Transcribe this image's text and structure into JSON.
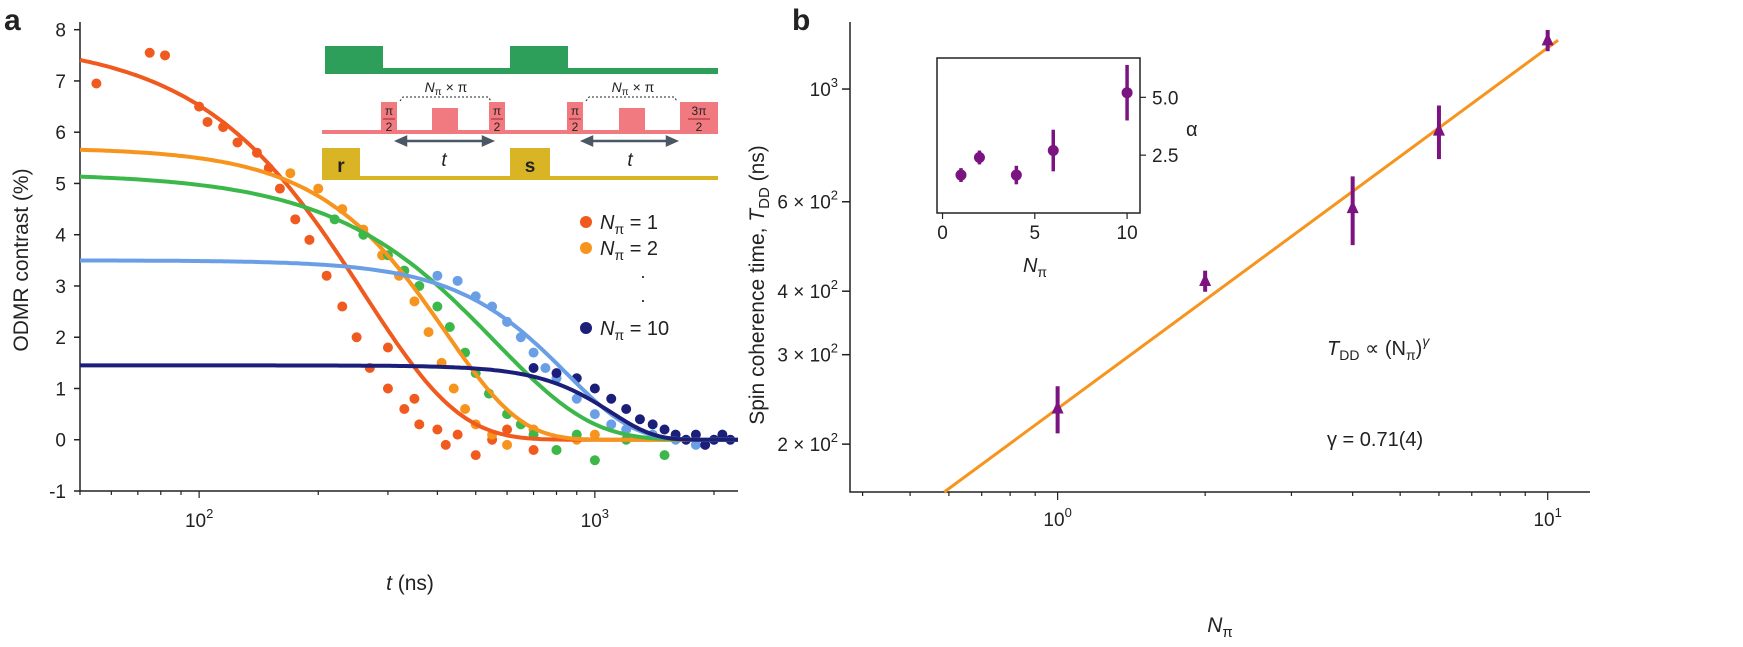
{
  "chart_data": [
    {
      "panel_label": "a",
      "type": "scatter",
      "xscale": "log",
      "xlabel_var": "t",
      "xlabel_unit": "(ns)",
      "ylabel": "ODMR contrast (%)",
      "xlim": [
        50,
        2300
      ],
      "ylim": [
        -1,
        8.15
      ],
      "yticks": [
        "8",
        "7",
        "6",
        "5",
        "4",
        "3",
        "2",
        "1",
        "0",
        "-1"
      ],
      "xticks": [
        {
          "v": 100,
          "base": "10",
          "exp": "2"
        },
        {
          "v": 1000,
          "base": "10",
          "exp": "3"
        }
      ],
      "legend": {
        "items": [
          {
            "label_var": "N",
            "label_sub": "π",
            "label_val": "= 1",
            "color": "#f05a1e"
          },
          {
            "label_var": "N",
            "label_sub": "π",
            "label_val": "= 2",
            "color": "#f7941d"
          },
          {
            "label_var": "N",
            "label_sub": "π",
            "label_val": "= 10",
            "color": "#1b1f7a"
          }
        ],
        "ellipsis": "·"
      },
      "series": [
        {
          "name": "N=1",
          "color": "#f05a1e",
          "fit": {
            "A": 7.8,
            "T": 260,
            "alpha": 1.8
          },
          "points": [
            [
              55,
              6.95
            ],
            [
              75,
              7.55
            ],
            [
              82,
              7.5
            ],
            [
              100,
              6.5
            ],
            [
              105,
              6.2
            ],
            [
              115,
              6.1
            ],
            [
              125,
              5.8
            ],
            [
              140,
              5.6
            ],
            [
              150,
              5.3
            ],
            [
              160,
              4.9
            ],
            [
              175,
              4.3
            ],
            [
              190,
              3.9
            ],
            [
              210,
              3.2
            ],
            [
              230,
              2.6
            ],
            [
              250,
              2.0
            ],
            [
              270,
              1.4
            ],
            [
              300,
              1.0
            ],
            [
              300,
              1.8
            ],
            [
              330,
              0.6
            ],
            [
              350,
              0.8
            ],
            [
              360,
              0.3
            ],
            [
              400,
              0.2
            ],
            [
              420,
              -0.1
            ],
            [
              450,
              0.1
            ],
            [
              500,
              -0.3
            ],
            [
              550,
              0
            ],
            [
              600,
              0.2
            ],
            [
              700,
              -0.2
            ]
          ]
        },
        {
          "name": "N=2",
          "color": "#f7941d",
          "fit": {
            "A": 5.7,
            "T": 420,
            "alpha": 2.3
          },
          "points": [
            [
              170,
              5.2
            ],
            [
              200,
              4.9
            ],
            [
              230,
              4.5
            ],
            [
              260,
              4.1
            ],
            [
              290,
              3.6
            ],
            [
              320,
              3.2
            ],
            [
              350,
              2.7
            ],
            [
              380,
              2.1
            ],
            [
              410,
              1.5
            ],
            [
              440,
              1.0
            ],
            [
              470,
              0.6
            ],
            [
              500,
              0.3
            ],
            [
              550,
              0.1
            ],
            [
              600,
              -0.1
            ],
            [
              700,
              0.2
            ],
            [
              800,
              -0.2
            ],
            [
              900,
              0
            ],
            [
              1000,
              0.1
            ]
          ]
        },
        {
          "name": "N=4",
          "color": "#3cb84a",
          "fit": {
            "A": 5.2,
            "T": 560,
            "alpha": 1.8
          },
          "points": [
            [
              220,
              4.3
            ],
            [
              260,
              4.0
            ],
            [
              300,
              3.6
            ],
            [
              330,
              3.3
            ],
            [
              360,
              3.0
            ],
            [
              400,
              2.6
            ],
            [
              430,
              2.2
            ],
            [
              470,
              1.7
            ],
            [
              500,
              1.3
            ],
            [
              540,
              0.9
            ],
            [
              600,
              0.5
            ],
            [
              650,
              0.3
            ],
            [
              700,
              0.1
            ],
            [
              800,
              -0.2
            ],
            [
              900,
              0.1
            ],
            [
              1000,
              -0.4
            ],
            [
              1200,
              0
            ],
            [
              1500,
              -0.3
            ]
          ]
        },
        {
          "name": "N=6",
          "color": "#6a9fe6",
          "fit": {
            "A": 3.5,
            "T": 850,
            "alpha": 2.6
          },
          "points": [
            [
              400,
              3.2
            ],
            [
              450,
              3.1
            ],
            [
              500,
              2.8
            ],
            [
              550,
              2.6
            ],
            [
              600,
              2.3
            ],
            [
              650,
              2.0
            ],
            [
              700,
              1.7
            ],
            [
              750,
              1.4
            ],
            [
              800,
              1.2
            ],
            [
              900,
              0.8
            ],
            [
              1000,
              0.5
            ],
            [
              1100,
              0.3
            ],
            [
              1200,
              0.2
            ],
            [
              1400,
              0.1
            ],
            [
              1600,
              0
            ],
            [
              1800,
              -0.1
            ],
            [
              2000,
              0
            ]
          ]
        },
        {
          "name": "N=10",
          "color": "#1b1f7a",
          "fit": {
            "A": 1.45,
            "T": 1100,
            "alpha": 4
          },
          "points": [
            [
              700,
              1.4
            ],
            [
              800,
              1.3
            ],
            [
              900,
              1.2
            ],
            [
              1000,
              1.0
            ],
            [
              1100,
              0.8
            ],
            [
              1200,
              0.6
            ],
            [
              1300,
              0.4
            ],
            [
              1400,
              0.3
            ],
            [
              1500,
              0.2
            ],
            [
              1600,
              0.1
            ],
            [
              1700,
              0
            ],
            [
              1800,
              0.1
            ],
            [
              1900,
              -0.1
            ],
            [
              2000,
              0
            ],
            [
              2100,
              0.1
            ],
            [
              2200,
              0
            ]
          ]
        }
      ],
      "pulse_diagram": {
        "colors": {
          "laser": "#2e9e5b",
          "mw": "#f07a80",
          "readout": "#d9b526",
          "arrow": "#4a5866"
        },
        "block_label": "N",
        "block_label_sub": "π",
        "block_label_rest": "× π",
        "half_pi_num": "π",
        "half_pi_den": "2",
        "three_half_pi_num": "3π",
        "delay_label": "t",
        "readout_labels": [
          "r",
          "s"
        ]
      }
    },
    {
      "panel_label": "b",
      "type": "scatter",
      "xscale": "log",
      "yscale": "log",
      "ylabel": "Spin coherence time, ",
      "ylabel_var": "T",
      "ylabel_sub": "DD",
      "ylabel_unit": " (ns)",
      "xlabel_var": "N",
      "xlabel_sub": "π",
      "xlim": [
        0.377,
        12.2
      ],
      "ylim": [
        161,
        1355
      ],
      "yticks": [
        {
          "v": 200,
          "m": "2 ×",
          "base": "10",
          "exp": "2"
        },
        {
          "v": 300,
          "m": "3 ×",
          "base": "10",
          "exp": "2"
        },
        {
          "v": 400,
          "m": "4 ×",
          "base": "10",
          "exp": "2"
        },
        {
          "v": 600,
          "m": "6 ×",
          "base": "10",
          "exp": "2"
        },
        {
          "v": 1000,
          "m": "",
          "base": "10",
          "exp": "3"
        }
      ],
      "xticks": [
        {
          "v": 1,
          "base": "10",
          "exp": "0"
        },
        {
          "v": 10,
          "base": "10",
          "exp": "1"
        }
      ],
      "color": "#7b1380",
      "fit_color": "#f7941d",
      "points": [
        {
          "x": 1,
          "y": 235,
          "err": 25
        },
        {
          "x": 2,
          "y": 419,
          "err": 20
        },
        {
          "x": 4,
          "y": 583,
          "err": 90
        },
        {
          "x": 6,
          "y": 828,
          "err": 100
        },
        {
          "x": 10,
          "y": 1247,
          "err": 60
        }
      ],
      "fit": {
        "A": 235,
        "gamma": 0.71
      },
      "annotation_eq": {
        "var": "T",
        "sub": "DD",
        "rest": " ∝ (N",
        "sub2": "π",
        "close": ")",
        "sup": "γ"
      },
      "annotation_gamma": "γ = 0.71(4)",
      "inset": {
        "xlabel_var": "N",
        "xlabel_sub": "π",
        "ylabel": "α",
        "xlim": [
          -0.3,
          10.7
        ],
        "ylim": [
          0,
          6.7
        ],
        "xticks": [
          "0",
          "5",
          "10"
        ],
        "yticks": [
          "2.5",
          "5.0"
        ],
        "points": [
          {
            "x": 1,
            "y": 1.64,
            "err": 0.3
          },
          {
            "x": 2,
            "y": 2.4,
            "err": 0.3
          },
          {
            "x": 4,
            "y": 1.64,
            "err": 0.4
          },
          {
            "x": 6,
            "y": 2.7,
            "err": 0.9
          },
          {
            "x": 10,
            "y": 5.2,
            "err": 1.2
          }
        ]
      }
    }
  ]
}
